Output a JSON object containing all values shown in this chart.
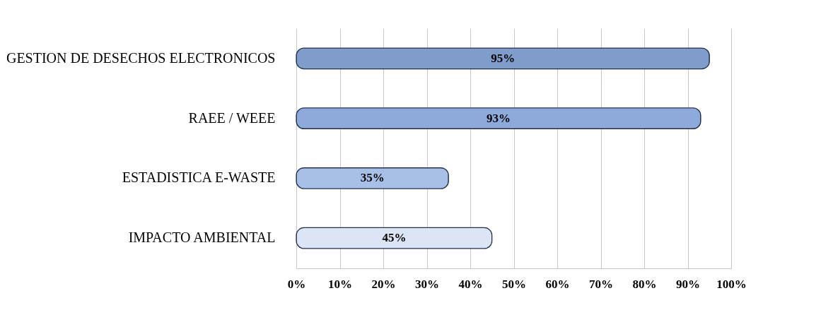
{
  "chart_data": {
    "type": "bar",
    "orientation": "horizontal",
    "categories": [
      "GESTION DE DESECHOS ELECTRONICOS",
      "RAEE / WEEE",
      "ESTADISTICA E-WASTE",
      "IMPACTO AMBIENTAL"
    ],
    "values": [
      95,
      93,
      35,
      45
    ],
    "value_labels": [
      "95%",
      "93%",
      "35%",
      "45%"
    ],
    "colors": [
      "#7f9ccb",
      "#8eaadb",
      "#a8c0e8",
      "#dbe5f5"
    ],
    "xlim": [
      0,
      100
    ],
    "xticks": [
      {
        "value": 0,
        "label": "0%"
      },
      {
        "value": 10,
        "label": "10%"
      },
      {
        "value": 20,
        "label": "20%"
      },
      {
        "value": 30,
        "label": "30%"
      },
      {
        "value": 40,
        "label": "40%"
      },
      {
        "value": 50,
        "label": "50%"
      },
      {
        "value": 60,
        "label": "60%"
      },
      {
        "value": 70,
        "label": "70%"
      },
      {
        "value": 80,
        "label": "80%"
      },
      {
        "value": 90,
        "label": "90%"
      },
      {
        "value": 100,
        "label": "100%"
      }
    ],
    "grid": "x"
  }
}
